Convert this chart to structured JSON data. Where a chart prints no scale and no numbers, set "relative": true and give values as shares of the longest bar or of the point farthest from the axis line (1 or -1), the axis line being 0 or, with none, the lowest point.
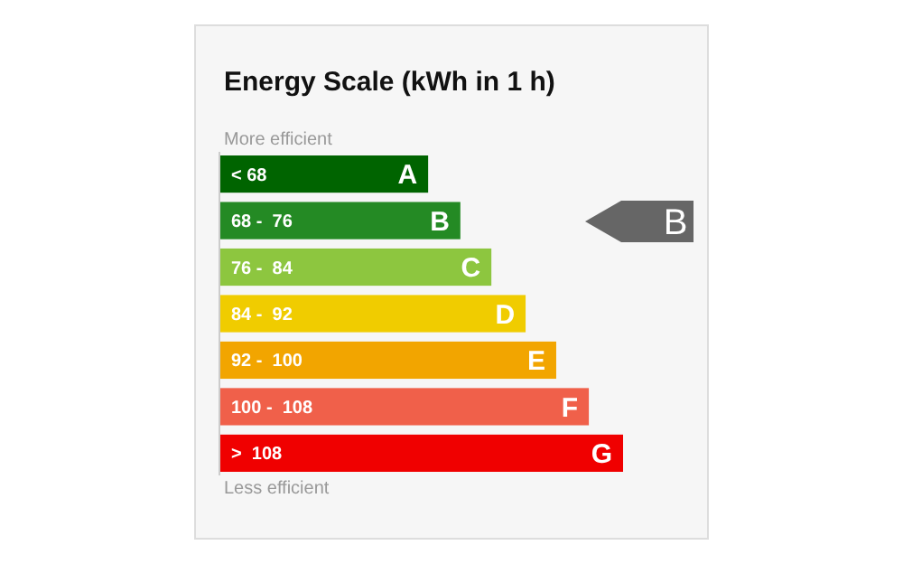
{
  "chart_data": {
    "type": "bar",
    "orientation": "horizontal",
    "relative": true,
    "title": "Energy Scale (kWh in 1 h)",
    "categories": [
      "< 68",
      "68 -  76",
      "76 -  84",
      "84 -  92",
      "92 -  100",
      "100 -  108",
      ">  108"
    ],
    "values": [
      0.516,
      0.596,
      0.673,
      0.758,
      0.834,
      0.915,
      1
    ],
    "colors": [
      "#006400",
      "#248a24",
      "#8dc63f",
      "#f0cc00",
      "#f2a500",
      "#f0604a",
      "#f00000"
    ],
    "annotations": [
      "More efficient",
      "Less efficient",
      "A",
      "B",
      "C",
      "D",
      "E",
      "F",
      "G",
      "B"
    ]
  }
}
